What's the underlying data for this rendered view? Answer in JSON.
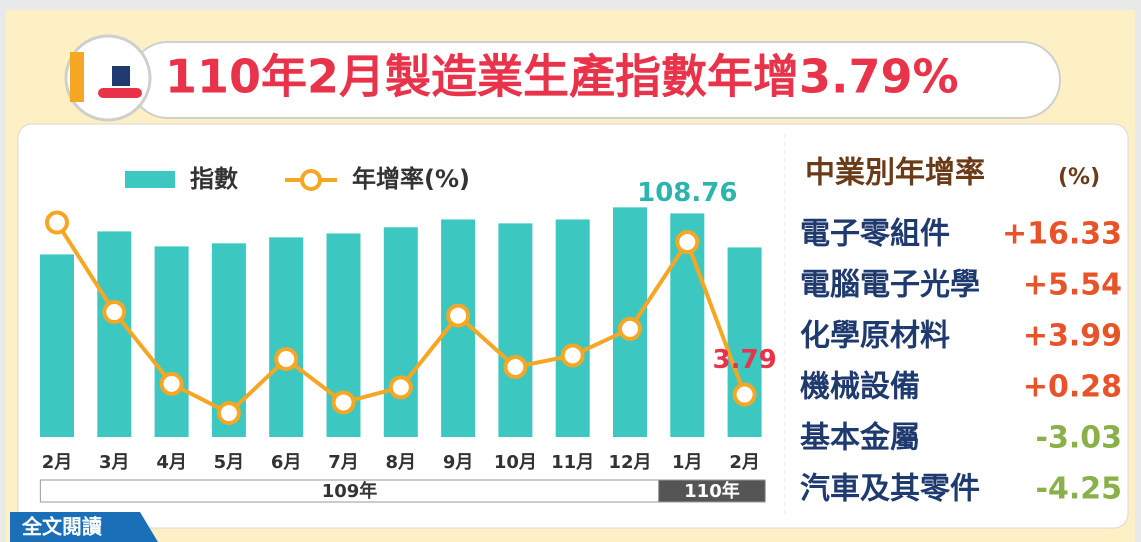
{
  "header": {
    "title": "110年2月製造業生產指數年增3.79%"
  },
  "chart_data": {
    "type": "bar-line",
    "categories": [
      "2月",
      "3月",
      "4月",
      "5月",
      "6月",
      "7月",
      "8月",
      "9月",
      "10月",
      "11月",
      "12月",
      "1月",
      "2月"
    ],
    "groups": [
      {
        "label": "109年",
        "span": 11,
        "color": "#ffffff",
        "text_color": "#333333"
      },
      {
        "label": "110年",
        "span": 2,
        "color": "#555555",
        "text_color": "#ffffff"
      }
    ],
    "series": [
      {
        "name": "指數",
        "color": "#3cc8c0",
        "label_color": "#2bb5ae",
        "values": [
          88.8,
          100.0,
          92.7,
          94.2,
          97.1,
          99.0,
          102.0,
          105.8,
          103.9,
          105.8,
          111.7,
          108.76,
          92.2
        ],
        "value_labels": [
          null,
          null,
          null,
          null,
          null,
          null,
          null,
          null,
          null,
          null,
          null,
          "108.76",
          null
        ]
      },
      {
        "name": "年增率(%)",
        "color": "#f5a623",
        "label_color": "#e8334a",
        "axis": "y2",
        "values": [
          23.2,
          13.1,
          5.0,
          1.7,
          7.8,
          2.9,
          4.6,
          12.7,
          6.9,
          8.2,
          11.2,
          21.0,
          3.79
        ],
        "value_labels": [
          null,
          null,
          null,
          null,
          null,
          null,
          null,
          null,
          null,
          null,
          null,
          null,
          "3.79"
        ]
      }
    ],
    "ylim": [
      0,
      125
    ],
    "y2lim": [
      -1,
      28
    ]
  },
  "side_table": {
    "title": "中業別年增率",
    "unit": "(%)",
    "rows": [
      [
        "電子零組件",
        "+16.33"
      ],
      [
        "電腦電子光學",
        "+5.54"
      ],
      [
        "化學原材料",
        "+3.99"
      ],
      [
        "機械設備",
        "+0.28"
      ],
      [
        "基本金屬",
        "-3.03"
      ],
      [
        "汽車及其零件",
        "-4.25"
      ]
    ]
  },
  "button": {
    "label": "全文閱讀"
  }
}
